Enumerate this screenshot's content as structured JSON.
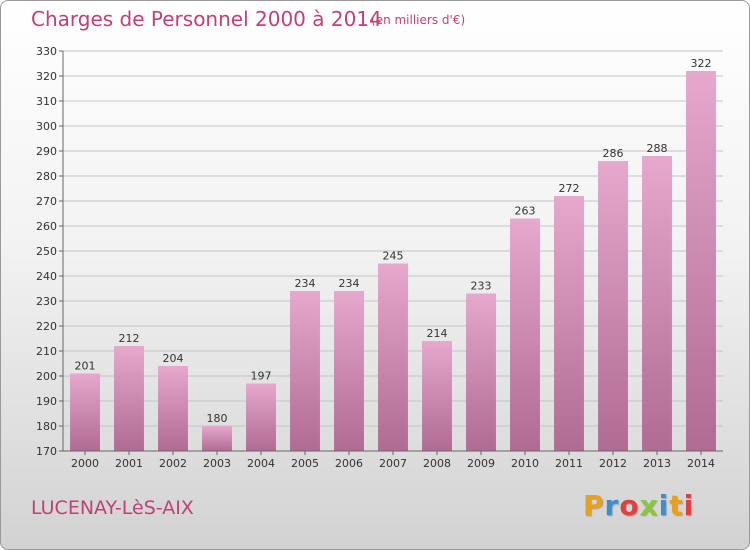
{
  "header": {
    "title": "Charges de Personnel 2000 à 2014",
    "subtitle": "(en milliers d'€)"
  },
  "footer": {
    "commune": "LUCENAY-LèS-AIX",
    "brand_letters": [
      "P",
      "r",
      "o",
      "x",
      "i",
      "t",
      "i"
    ],
    "brand_colors": [
      "#e8a020",
      "#3a8fd0",
      "#e04040",
      "#8cc63f",
      "#3a8fd0",
      "#e8a020",
      "#e04040"
    ]
  },
  "colors": {
    "bar_light": "#e6a8cc",
    "bar_dark": "#b06b92",
    "text_accent": "#c0407a",
    "grid": "#c4c4c4",
    "axis_text": "#333333"
  },
  "chart_data": {
    "type": "bar",
    "categories": [
      "2000",
      "2001",
      "2002",
      "2003",
      "2004",
      "2005",
      "2006",
      "2007",
      "2008",
      "2009",
      "2010",
      "2011",
      "2012",
      "2013",
      "2014"
    ],
    "values": [
      201,
      212,
      204,
      180,
      197,
      234,
      234,
      245,
      214,
      233,
      263,
      272,
      286,
      288,
      322
    ],
    "data_labels": [
      "201",
      "212",
      "204",
      "180",
      "197",
      "234",
      "234",
      "245",
      "214",
      "233",
      "263",
      "272",
      "286",
      "288",
      "322"
    ],
    "title": "Charges de Personnel 2000 à 2014",
    "ylim": [
      170,
      330
    ],
    "yticks": [
      170,
      180,
      190,
      200,
      210,
      220,
      230,
      240,
      250,
      260,
      270,
      280,
      290,
      300,
      310,
      320,
      330
    ],
    "grid": true,
    "legend": "none"
  }
}
